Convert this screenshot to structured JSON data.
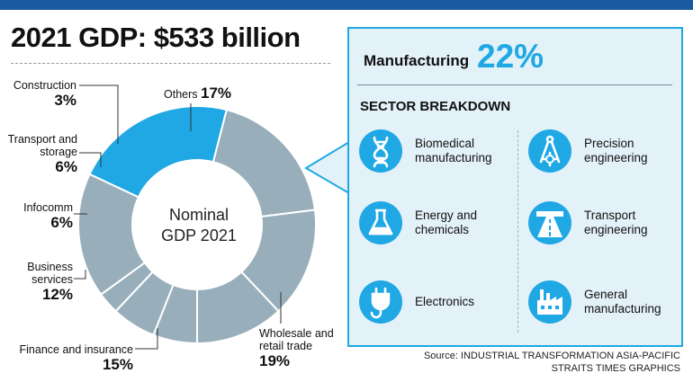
{
  "header": {
    "title": "2021 GDP: $533 billion"
  },
  "chart_data": {
    "type": "pie",
    "donut": true,
    "center_label": [
      "Nominal",
      "GDP 2021"
    ],
    "categories": [
      "Manufacturing",
      "Wholesale and retail trade",
      "Finance and insurance",
      "Business services",
      "Infocomm",
      "Transport and storage",
      "Construction",
      "Others"
    ],
    "values": [
      22,
      19,
      15,
      12,
      6,
      6,
      3,
      17
    ],
    "value_labels": [
      "22%",
      "19%",
      "15%",
      "12%",
      "6%",
      "6%",
      "3%",
      "17%"
    ],
    "colors": [
      "#1fa8e4",
      "#98afbb",
      "#98afbb",
      "#98afbb",
      "#98afbb",
      "#98afbb",
      "#98afbb",
      "#98afbb"
    ],
    "label_lines": {
      "wholesale": [
        "Wholesale and",
        "retail trade"
      ],
      "transport": [
        "Transport and",
        "storage"
      ],
      "business": [
        "Business",
        "services"
      ]
    }
  },
  "panel": {
    "title": "Manufacturing",
    "percent": "22%",
    "breakdown_heading": "SECTOR BREAKDOWN",
    "sectors": [
      {
        "icon": "dna-icon",
        "lines": [
          "Biomedical",
          "manufacturing"
        ]
      },
      {
        "icon": "compass-gear-icon",
        "lines": [
          "Precision",
          "engineering"
        ]
      },
      {
        "icon": "flask-icon",
        "lines": [
          "Energy and",
          "chemicals"
        ]
      },
      {
        "icon": "highway-icon",
        "lines": [
          "Transport",
          "engineering"
        ]
      },
      {
        "icon": "plug-icon",
        "lines": [
          "Electronics"
        ]
      },
      {
        "icon": "factory-icon",
        "lines": [
          "General",
          "manufacturing"
        ]
      }
    ]
  },
  "source": {
    "line1": "Source: INDUSTRIAL TRANSFORMATION ASIA-PACIFIC",
    "line2": "STRAITS TIMES GRAPHICS"
  },
  "accent_color": "#1fa8e4",
  "segment_color": "#98afbb",
  "bar_color": "#1a5aa0"
}
